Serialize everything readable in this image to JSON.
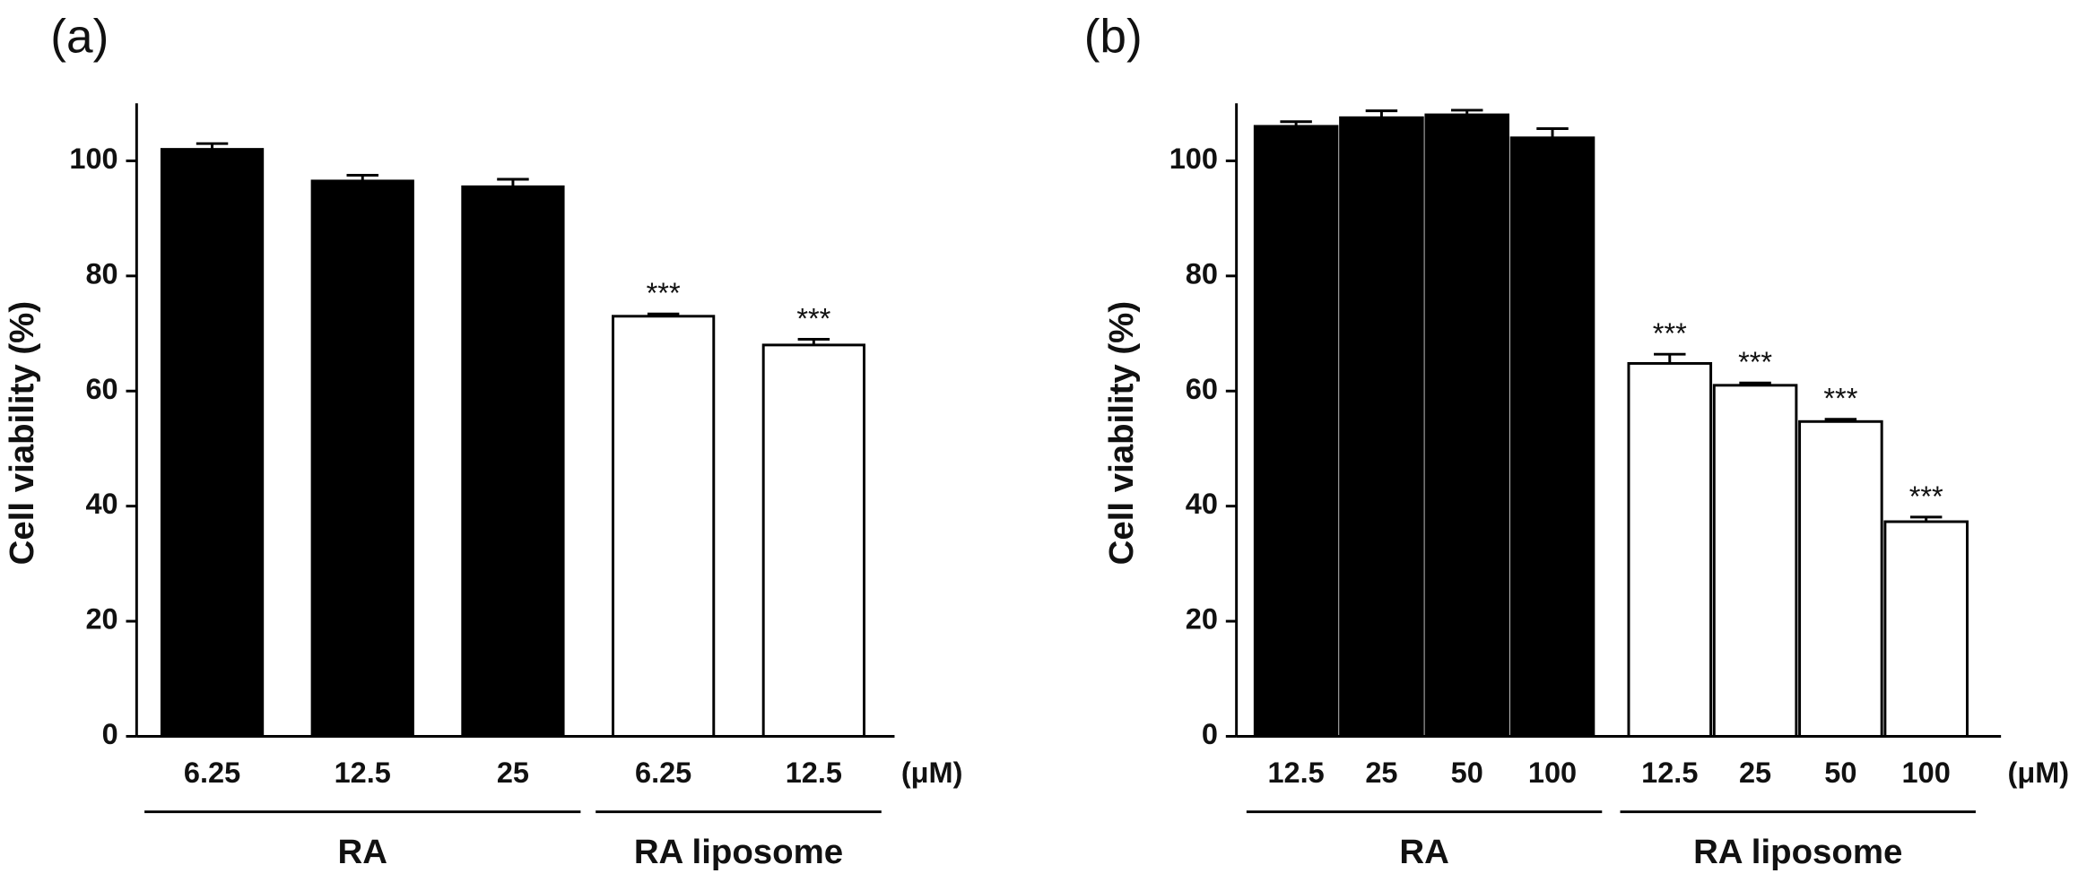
{
  "chart_data": [
    {
      "type": "bar",
      "panel_label": "(a)",
      "ylabel": "Cell viability (%)",
      "unit": "(μM)",
      "categories": [
        "6.25",
        "12.5",
        "25",
        "6.25",
        "12.5"
      ],
      "values": [
        102,
        96.5,
        95.5,
        73,
        68
      ],
      "errors": [
        1,
        1,
        1.3,
        0.4,
        1
      ],
      "significance": [
        null,
        null,
        null,
        "***",
        "***"
      ],
      "colors": [
        "#000000",
        "#000000",
        "#000000",
        "#ffffff",
        "#ffffff"
      ],
      "groups": [
        {
          "name": "RA",
          "count": 3
        },
        {
          "name": "RA liposome",
          "count": 2
        }
      ],
      "ylim": [
        0,
        110
      ],
      "yticks": [
        0,
        20,
        40,
        60,
        80,
        100
      ]
    },
    {
      "type": "bar",
      "panel_label": "(b)",
      "ylabel": "Cell viability (%)",
      "unit": "(μM)",
      "categories": [
        "12.5",
        "25",
        "50",
        "100",
        "12.5",
        "25",
        "50",
        "100"
      ],
      "values": [
        106,
        107.5,
        108,
        104,
        64.8,
        61,
        54.7,
        37.3
      ],
      "errors": [
        0.8,
        1.2,
        0.8,
        1.6,
        1.6,
        0.4,
        0.4,
        0.8
      ],
      "significance": [
        null,
        null,
        null,
        null,
        "***",
        "***",
        "***",
        "***"
      ],
      "colors": [
        "#000000",
        "#000000",
        "#000000",
        "#000000",
        "#ffffff",
        "#ffffff",
        "#ffffff",
        "#ffffff"
      ],
      "groups": [
        {
          "name": "RA",
          "count": 4
        },
        {
          "name": "RA liposome",
          "count": 4
        }
      ],
      "ylim": [
        0,
        110
      ],
      "yticks": [
        0,
        20,
        40,
        60,
        80,
        100
      ]
    }
  ]
}
